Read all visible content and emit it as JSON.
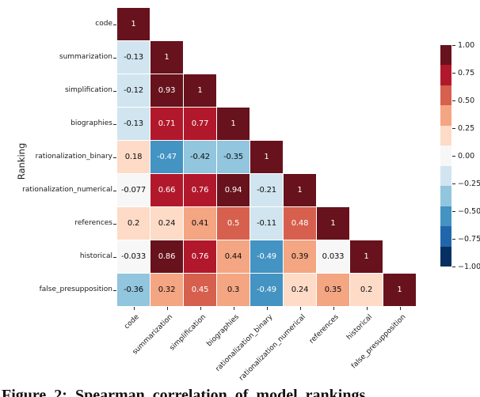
{
  "caption": "Figure 2: Spearman correlation of model rankings",
  "chart_data": {
    "type": "heatmap",
    "title": "",
    "xlabel": "",
    "ylabel": "Ranking",
    "shape": "lower-triangle",
    "annotated": true,
    "grid": false,
    "categories": [
      "code",
      "summarization",
      "simplification",
      "biographies",
      "rationalization_binary",
      "rationalization_numerical",
      "references",
      "historical",
      "false_presupposition"
    ],
    "values": [
      [
        1
      ],
      [
        -0.13,
        1
      ],
      [
        -0.12,
        0.93,
        1
      ],
      [
        -0.13,
        0.71,
        0.77,
        1
      ],
      [
        0.18,
        -0.47,
        -0.42,
        -0.35,
        1
      ],
      [
        -0.077,
        0.66,
        0.76,
        0.94,
        -0.21,
        1
      ],
      [
        0.2,
        0.24,
        0.41,
        0.5,
        -0.11,
        0.48,
        1
      ],
      [
        -0.033,
        0.86,
        0.76,
        0.44,
        -0.49,
        0.39,
        0.033,
        1
      ],
      [
        -0.36,
        0.32,
        0.45,
        0.3,
        -0.49,
        0.24,
        0.35,
        0.2,
        1
      ]
    ],
    "cell_labels": [
      [
        "1"
      ],
      [
        "-0.13",
        "1"
      ],
      [
        "-0.12",
        "0.93",
        "1"
      ],
      [
        "-0.13",
        "0.71",
        "0.77",
        "1"
      ],
      [
        "0.18",
        "-0.47",
        "-0.42",
        "-0.35",
        "1"
      ],
      [
        "-0.077",
        "0.66",
        "0.76",
        "0.94",
        "-0.21",
        "1"
      ],
      [
        "0.2",
        "0.24",
        "0.41",
        "0.5",
        "-0.11",
        "0.48",
        "1"
      ],
      [
        "-0.033",
        "0.86",
        "0.76",
        "0.44",
        "-0.49",
        "0.39",
        "0.033",
        "1"
      ],
      [
        "-0.36",
        "0.32",
        "0.45",
        "0.3",
        "-0.49",
        "0.24",
        "0.35",
        "0.2",
        "1"
      ]
    ],
    "colormap": {
      "name": "RdBu_r",
      "n_colors": 11,
      "palette_low_to_high": [
        "#053061",
        "#2166ac",
        "#4393c3",
        "#92c5de",
        "#d1e5f0",
        "#f7f7f7",
        "#fddbc7",
        "#f4a582",
        "#d6604d",
        "#b2182b",
        "#67121c"
      ],
      "bounds": [
        -0.8182,
        -0.6364,
        -0.4545,
        -0.2727,
        -0.0909,
        0.0909,
        0.2727,
        0.4499,
        0.6364,
        0.8182
      ],
      "annot_color_dark": "#0d0d0d",
      "annot_color_light": "#ffffff"
    },
    "colorbar": {
      "position": "right",
      "range": [
        -1,
        1
      ],
      "tick_labels": [
        "1.00",
        "0.75",
        "0.50",
        "0.25",
        "0.00",
        "−0.25",
        "−0.50",
        "−0.75",
        "−1.00"
      ]
    },
    "axis_ranges": {
      "vmin": -1,
      "vmax": 1
    }
  }
}
